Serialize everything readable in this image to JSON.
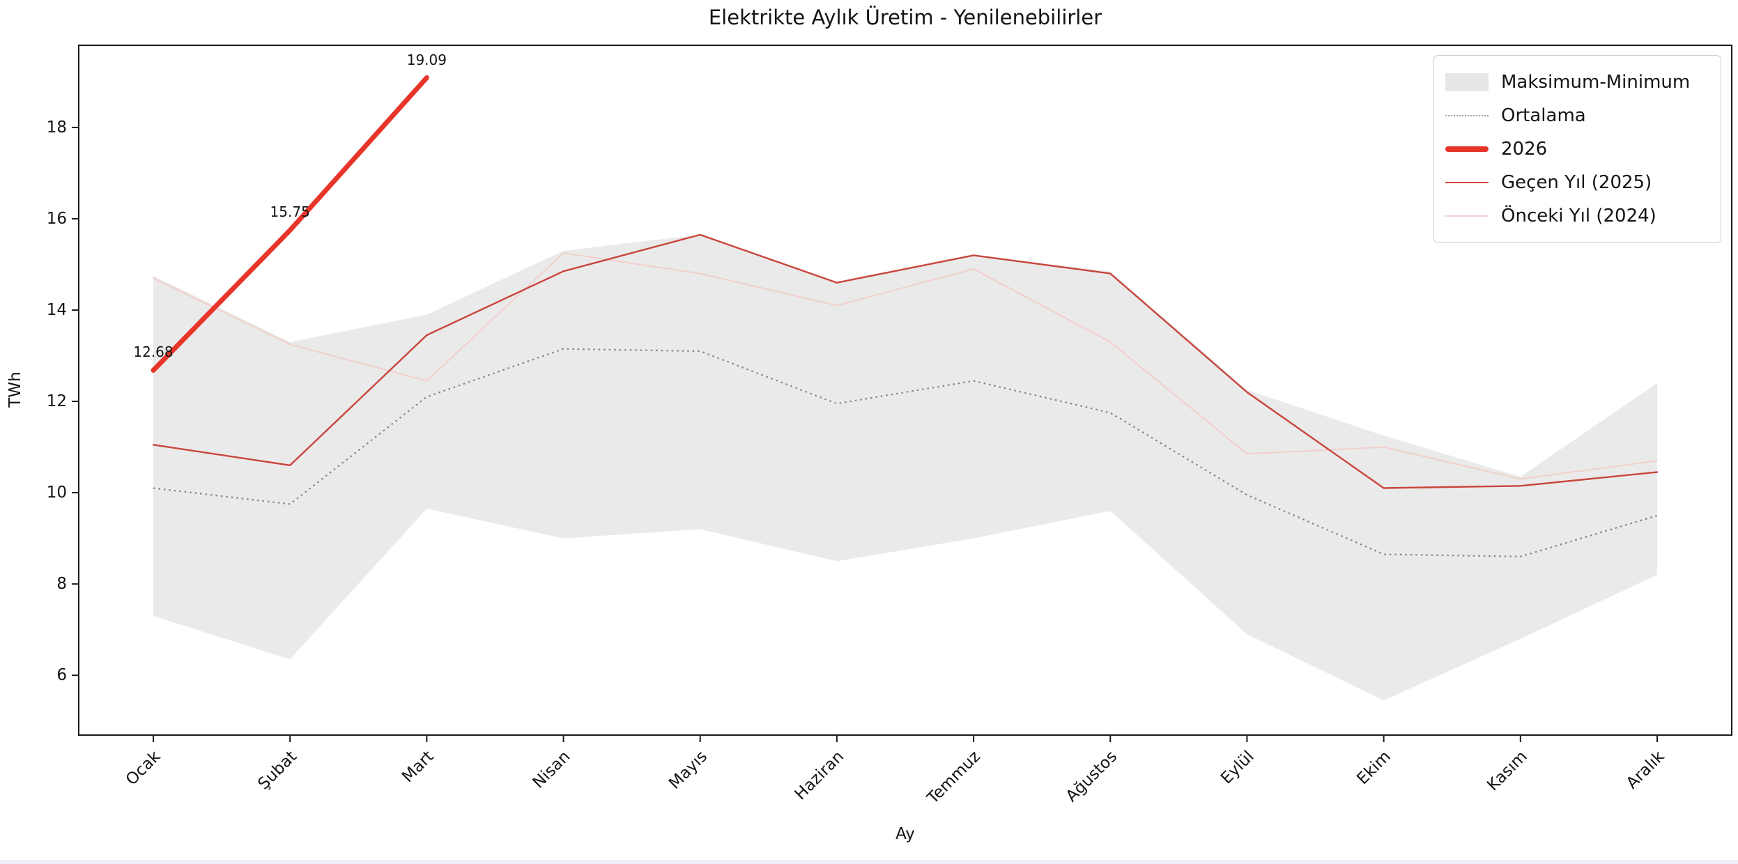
{
  "title": "Elektrikte Aylık Üretim - Yenilenebilirler",
  "chart_data": {
    "type": "line",
    "title": "Elektrikte Aylık Üretim - Yenilenebilirler",
    "xlabel": "Ay",
    "ylabel": "TWh",
    "categories": [
      "Ocak",
      "Şubat",
      "Mart",
      "Nisan",
      "Mayıs",
      "Haziran",
      "Temmuz",
      "Ağustos",
      "Eylül",
      "Ekim",
      "Kasım",
      "Aralık"
    ],
    "y_ticks": [
      6,
      8,
      10,
      12,
      14,
      16,
      18
    ],
    "ylim": [
      4.69,
      19.8
    ],
    "grid": false,
    "legend_position": "top-right",
    "band": {
      "name": "Maksimum-Minimum",
      "max": [
        14.75,
        13.3,
        13.9,
        15.3,
        15.65,
        14.6,
        15.2,
        14.85,
        12.25,
        11.25,
        10.35,
        12.4
      ],
      "min": [
        7.3,
        6.35,
        9.65,
        9.0,
        9.2,
        8.5,
        9.0,
        9.6,
        6.9,
        5.45,
        6.8,
        8.2
      ],
      "fill_color": "#eaeaea"
    },
    "series": [
      {
        "name": "Ortalama",
        "values": [
          10.1,
          9.75,
          12.1,
          13.15,
          13.1,
          11.95,
          12.45,
          11.75,
          9.95,
          8.65,
          8.6,
          9.5
        ],
        "color": "#7d838a",
        "style": "dotted",
        "width": 2.2
      },
      {
        "name": "Önceki Yıl (2024)",
        "values": [
          14.7,
          13.25,
          12.45,
          15.25,
          14.8,
          14.1,
          14.9,
          13.3,
          10.85,
          11.0,
          10.3,
          10.7
        ],
        "color": "#f2cfcb",
        "style": "solid",
        "width": 2
      },
      {
        "name": "Geçen Yıl (2025)",
        "values": [
          11.05,
          10.6,
          13.45,
          14.85,
          15.65,
          14.6,
          15.2,
          14.8,
          12.2,
          10.1,
          10.15,
          10.45
        ],
        "color": "#c9453c",
        "style": "solid",
        "width": 2.4
      },
      {
        "name": "2026",
        "values": [
          12.68,
          15.75,
          19.09,
          null,
          null,
          null,
          null,
          null,
          null,
          null,
          null,
          null
        ],
        "color": "#e8352a",
        "style": "solid",
        "width": 7
      }
    ],
    "annotations": [
      {
        "text": "12.68",
        "x_index": 0,
        "value": 12.68
      },
      {
        "text": "15.75",
        "x_index": 1,
        "value": 15.75
      },
      {
        "text": "19.09",
        "x_index": 2,
        "value": 19.09
      }
    ]
  },
  "legend": {
    "items": [
      {
        "label": "Maksimum-Minimum",
        "swatch": "band",
        "color": "#e7e7e7"
      },
      {
        "label": "Ortalama",
        "swatch": "dotted",
        "color": "#9aa0a6"
      },
      {
        "label": "2026",
        "swatch": "thick-line",
        "color": "#e8352a"
      },
      {
        "label": "Geçen Yıl (2025)",
        "swatch": "line",
        "color": "#d0493f"
      },
      {
        "label": "Önceki Yıl (2024)",
        "swatch": "line",
        "color": "#f4d3cf"
      }
    ]
  }
}
